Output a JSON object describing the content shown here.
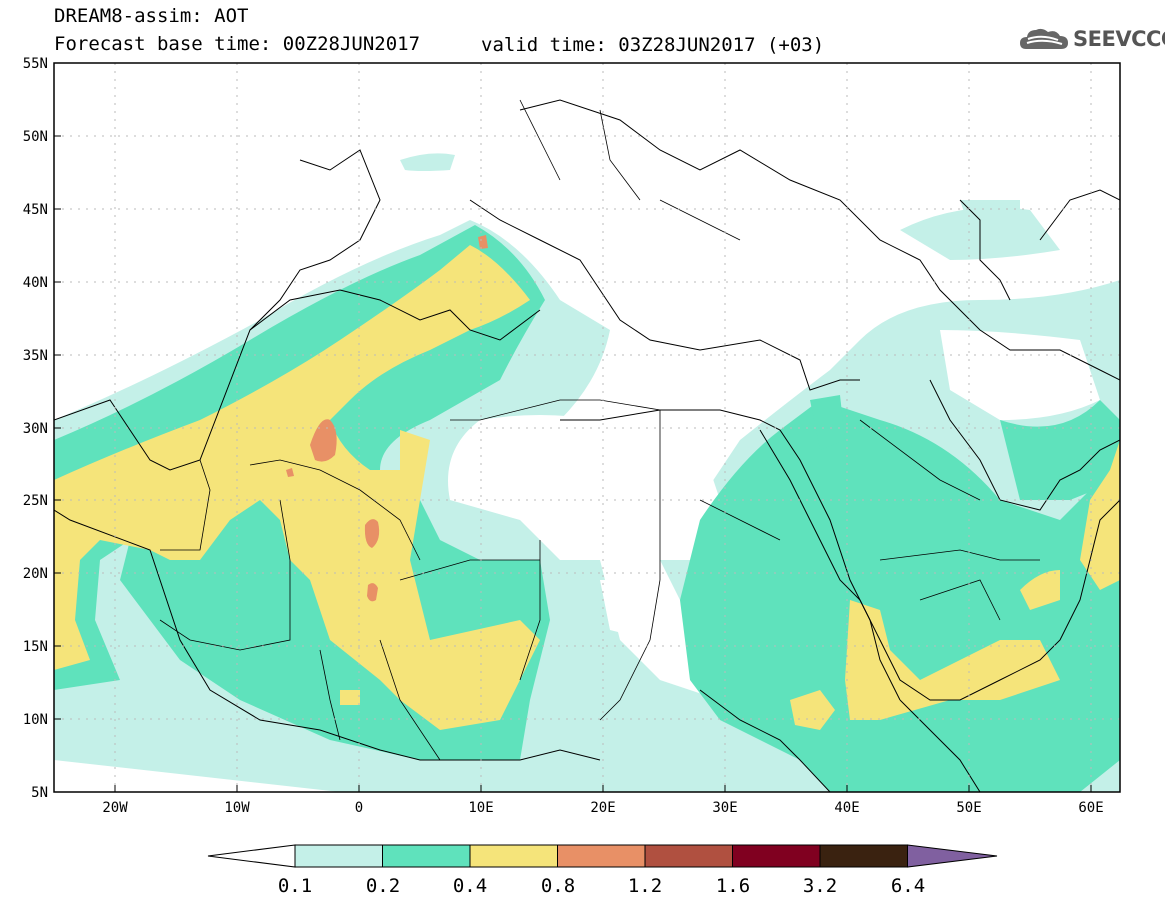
{
  "title_line1": "DREAM8-assim: AOT",
  "title_line2": "Forecast base time: 00Z28JUN2017",
  "valid_time": "valid time: 03Z28JUN2017 (+03)",
  "logo_text": "SEEVCCC",
  "map": {
    "lat_ticks": [
      "55N",
      "50N",
      "45N",
      "40N",
      "35N",
      "30N",
      "25N",
      "20N",
      "15N",
      "10N",
      "5N"
    ],
    "lon_ticks": [
      "20W",
      "10W",
      "0",
      "10E",
      "20E",
      "30E",
      "40E",
      "50E",
      "60E"
    ]
  },
  "colorbar": {
    "labels": [
      "0.1",
      "0.2",
      "0.4",
      "0.8",
      "1.2",
      "1.6",
      "3.2",
      "6.4"
    ],
    "colors": [
      "#ffffff",
      "#c4f0e8",
      "#5fe2bc",
      "#f5e47a",
      "#e89066",
      "#b05040",
      "#800020",
      "#3a2210",
      "#8060a0"
    ]
  }
}
